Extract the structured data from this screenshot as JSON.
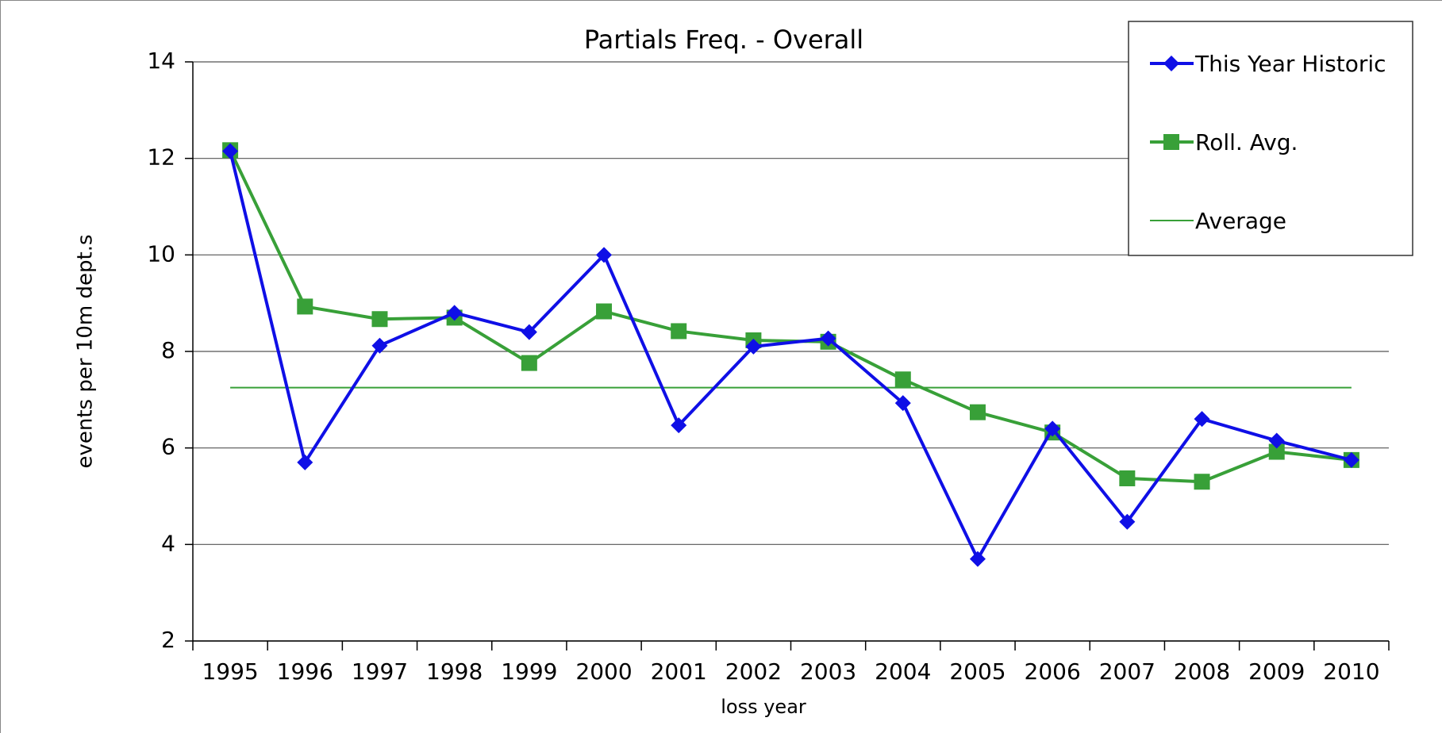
{
  "chart_data": {
    "type": "line",
    "title": "Partials Freq.  - Overall",
    "x_label": "loss year",
    "y_label": "events per 10m dept.s",
    "categories": [
      "1995",
      "1996",
      "1997",
      "1998",
      "1999",
      "2000",
      "2001",
      "2002",
      "2003",
      "2004",
      "2005",
      "2006",
      "2007",
      "2008",
      "2009",
      "2010"
    ],
    "series": [
      {
        "name": "This Year Historic",
        "color": "#0f0fe6",
        "marker": "diamond",
        "width": 4,
        "values": [
          12.15,
          5.7,
          8.12,
          8.8,
          8.4,
          10.0,
          6.47,
          8.1,
          8.27,
          6.93,
          3.7,
          6.4,
          4.47,
          6.6,
          6.15,
          5.75
        ]
      },
      {
        "name": "Roll. Avg.",
        "color": "#38a038",
        "marker": "square",
        "width": 4,
        "values": [
          12.17,
          8.93,
          8.67,
          8.7,
          7.76,
          8.83,
          8.42,
          8.23,
          8.2,
          7.42,
          6.74,
          6.32,
          5.37,
          5.3,
          5.92,
          5.75
        ]
      },
      {
        "name": "Average",
        "color": "#38a038",
        "marker": "none",
        "width": 2,
        "values": [
          7.25,
          7.25,
          7.25,
          7.25,
          7.25,
          7.25,
          7.25,
          7.25,
          7.25,
          7.25,
          7.25,
          7.25,
          7.25,
          7.25,
          7.25,
          7.25
        ]
      }
    ],
    "ylim": [
      2,
      14
    ],
    "yticks": [
      2,
      4,
      6,
      8,
      10,
      12,
      14
    ],
    "grid": true,
    "legend": "top-right"
  }
}
